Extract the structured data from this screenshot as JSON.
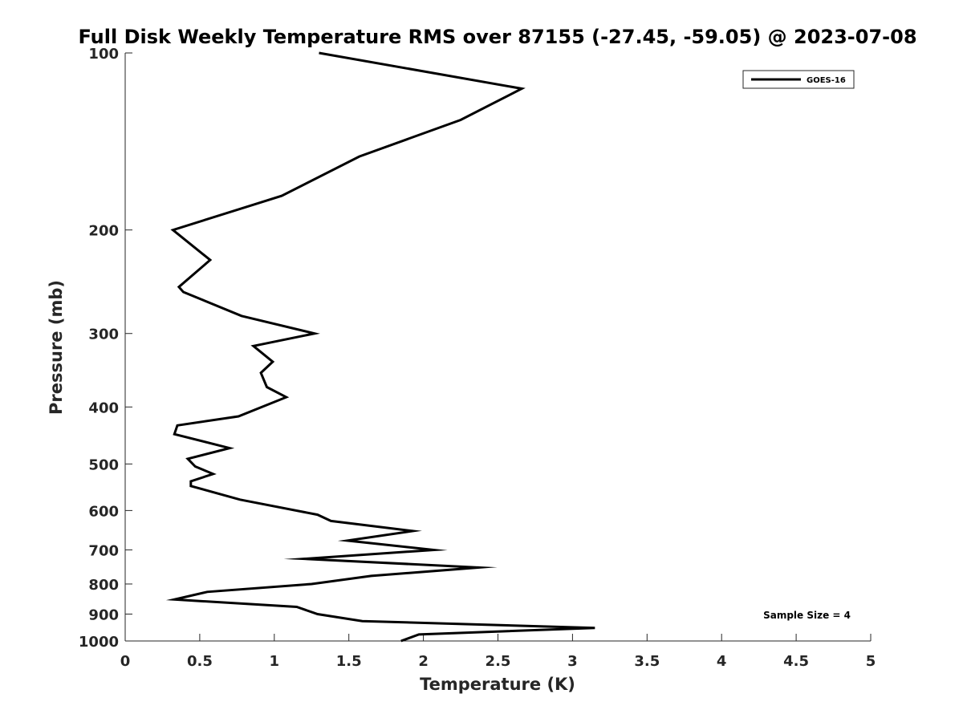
{
  "chart_data": {
    "type": "line",
    "title": "Full Disk Weekly Temperature RMS over 87155 (-27.45, -59.05) @ 2023-07-08",
    "xlabel": "Temperature (K)",
    "ylabel": "Pressure (mb)",
    "xlim": [
      0,
      5
    ],
    "ylim": [
      100,
      1000
    ],
    "y_scale": "log",
    "y_reversed": true,
    "x_ticks": [
      "0",
      "0.5",
      "1",
      "1.5",
      "2",
      "2.5",
      "3",
      "3.5",
      "4",
      "4.5",
      "5"
    ],
    "y_ticks": [
      "100",
      "200",
      "300",
      "400",
      "500",
      "600",
      "700",
      "800",
      "900",
      "1000"
    ],
    "grid": false,
    "legend_position": "top-right",
    "series": [
      {
        "name": "GOES-16",
        "color": "#000000",
        "x": [
          1.85,
          1.97,
          3.15,
          1.59,
          1.29,
          1.15,
          0.33,
          0.55,
          1.25,
          1.65,
          2.37,
          1.2,
          2.07,
          1.49,
          1.93,
          1.38,
          1.29,
          0.77,
          0.44,
          0.44,
          0.59,
          0.47,
          0.42,
          0.7,
          0.33,
          0.35,
          0.76,
          1.08,
          0.95,
          0.91,
          0.99,
          0.86,
          1.27,
          0.78,
          0.39,
          0.36,
          0.57,
          0.32,
          1.05,
          1.57,
          2.25,
          2.66,
          1.3
        ],
        "y": [
          1000,
          975,
          950,
          925,
          900,
          875,
          850,
          825,
          800,
          775,
          750,
          725,
          700,
          675,
          650,
          625,
          610,
          575,
          545,
          535,
          520,
          505,
          490,
          470,
          445,
          430,
          415,
          385,
          370,
          350,
          335,
          315,
          300,
          280,
          255,
          250,
          225,
          200,
          175,
          150,
          130,
          115,
          100
        ]
      }
    ],
    "annotations": [
      "Sample Size = 4"
    ]
  }
}
